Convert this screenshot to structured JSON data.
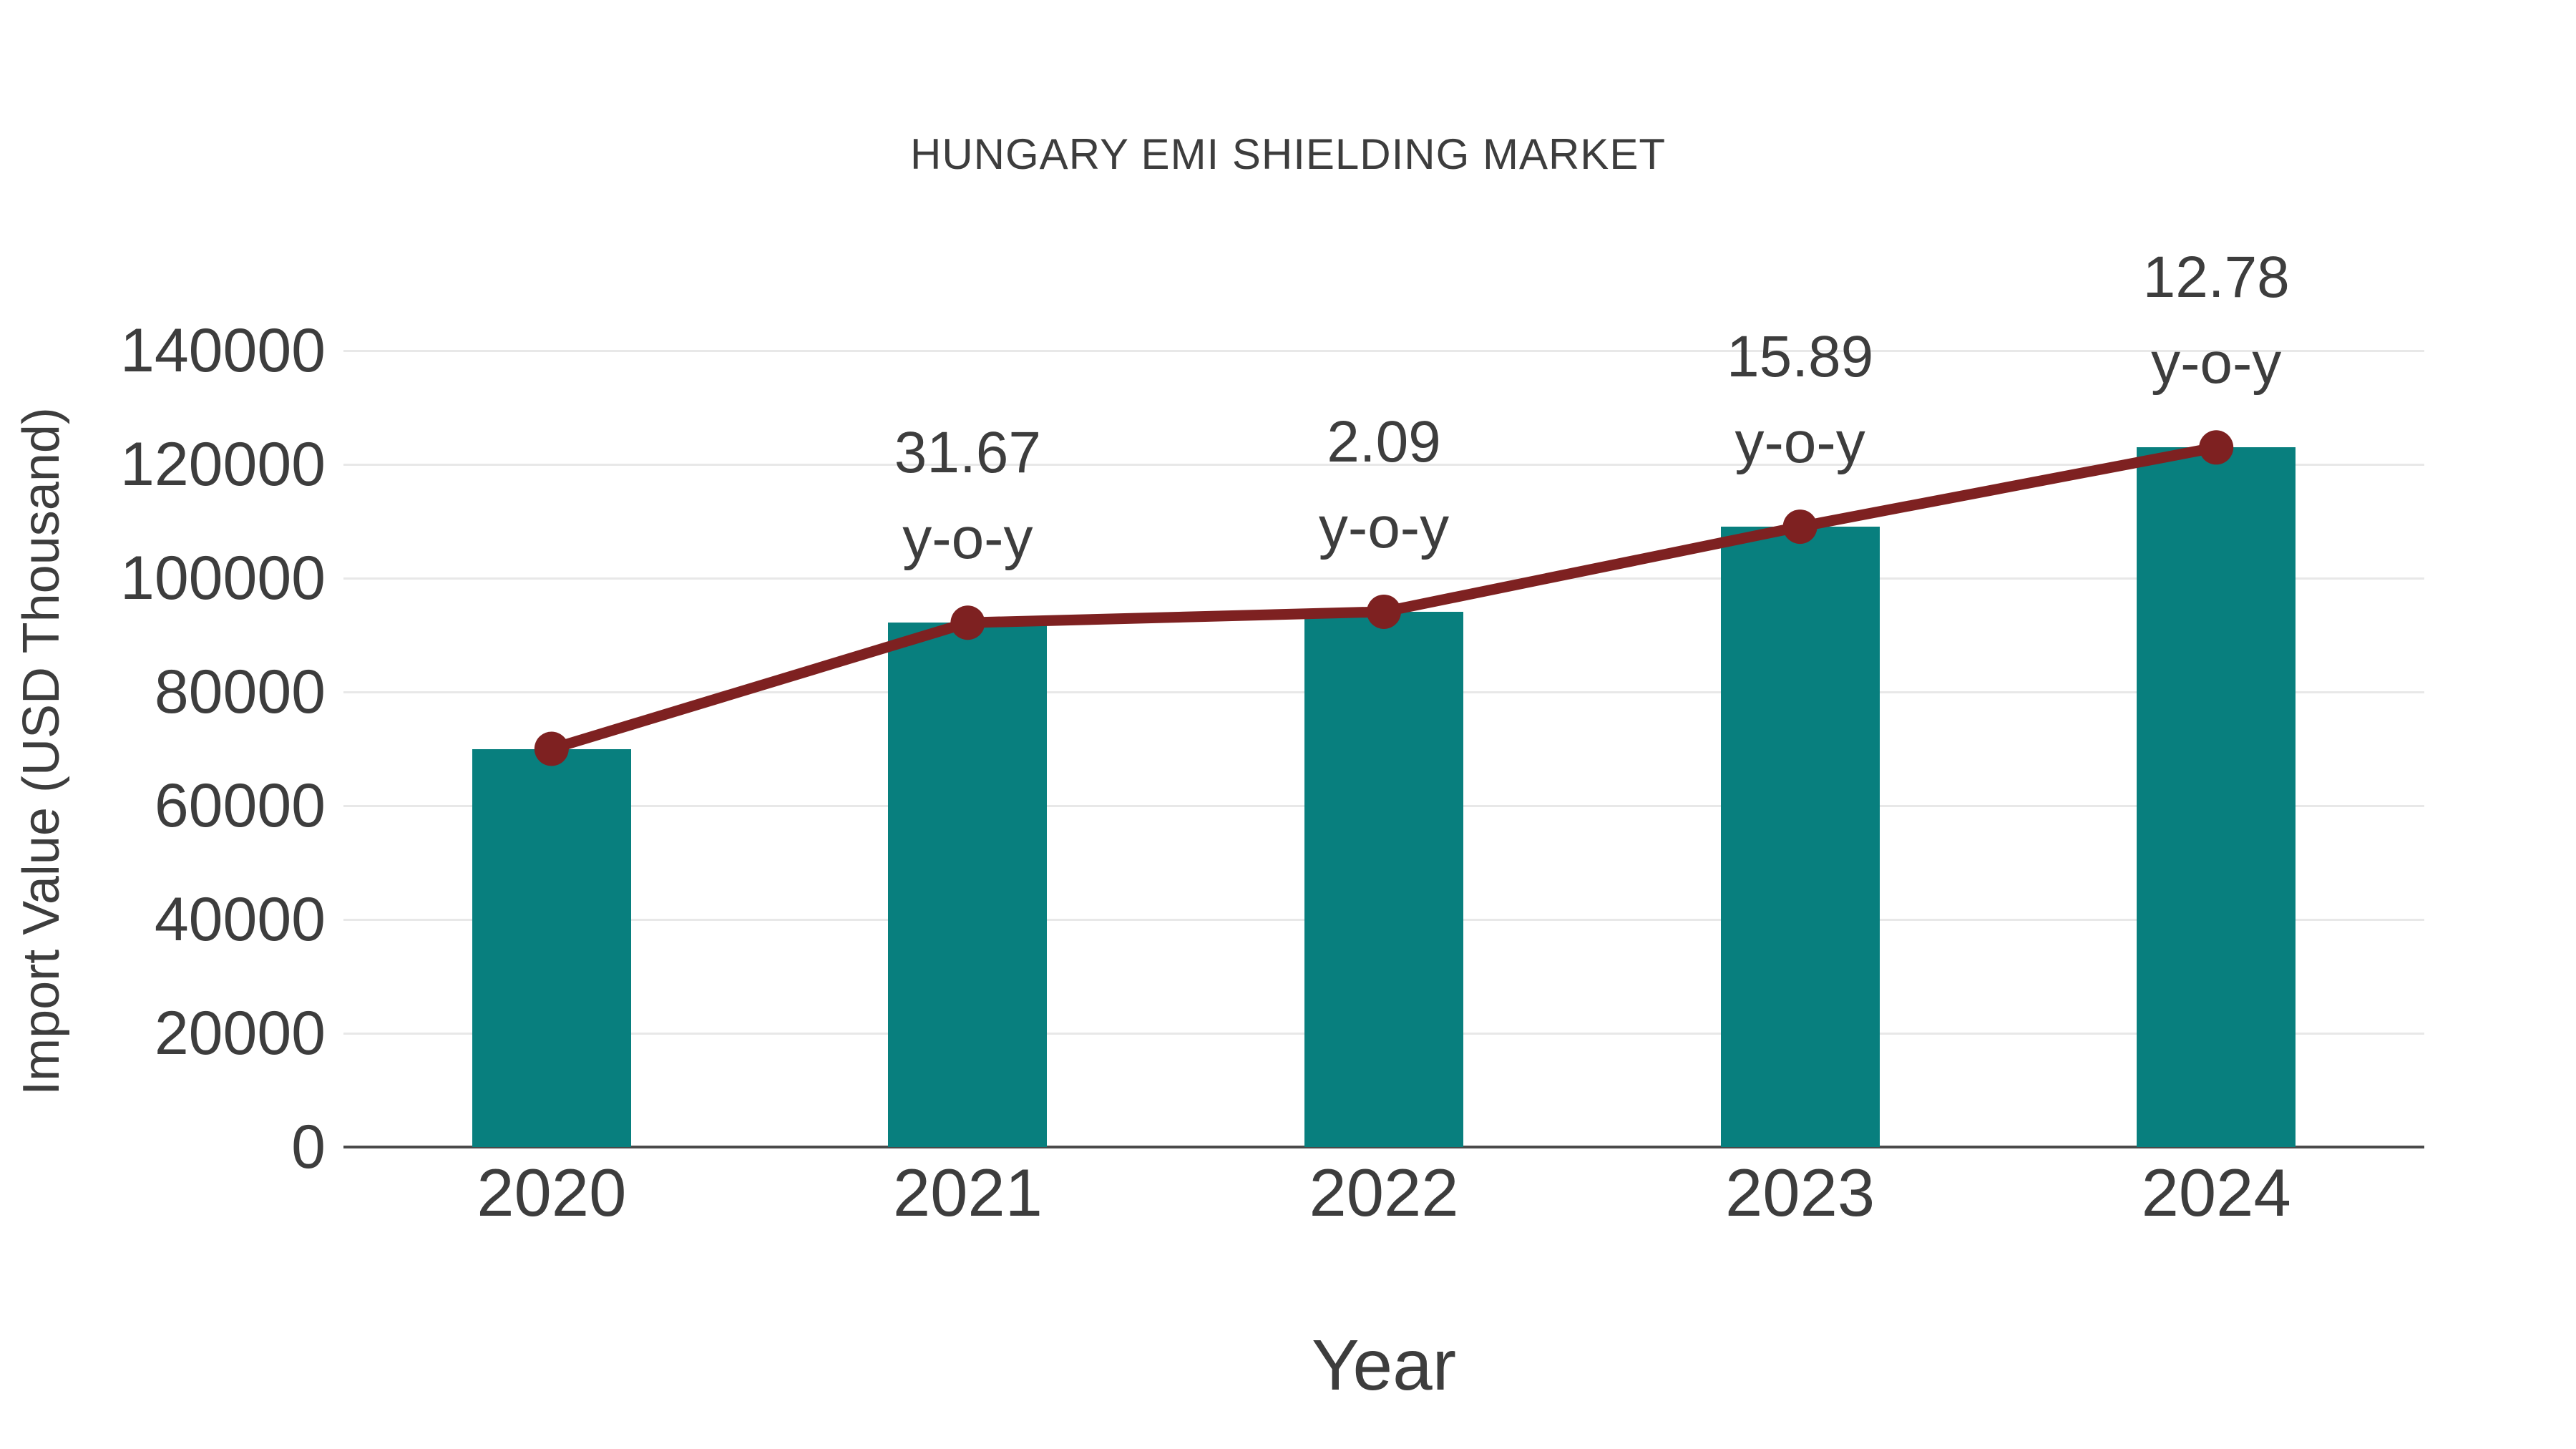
{
  "chart_data": {
    "type": "bar",
    "combo": "bar with line-and-marker overlay at bar tops",
    "title": "HUNGARY EMI SHIELDING MARKET",
    "xlabel": "Year",
    "ylabel": "Import Value (USD Thousand)",
    "categories": [
      "2020",
      "2021",
      "2022",
      "2023",
      "2024"
    ],
    "series": [
      {
        "name": "Import Value bars",
        "type": "bar",
        "values": [
          70000,
          92169,
          94095,
          109047,
          122983
        ]
      },
      {
        "name": "Import Value trend line",
        "type": "line",
        "values": [
          70000,
          92169,
          94095,
          109047,
          122983
        ]
      }
    ],
    "annotations": [
      {
        "category": "2021",
        "value_text": "31.67",
        "suffix_text": "y-o-y",
        "yoy_percent": 31.67
      },
      {
        "category": "2022",
        "value_text": "2.09",
        "suffix_text": "y-o-y",
        "yoy_percent": 2.09
      },
      {
        "category": "2023",
        "value_text": "15.89",
        "suffix_text": "y-o-y",
        "yoy_percent": 15.89
      },
      {
        "category": "2024",
        "value_text": "12.78",
        "suffix_text": "y-o-y",
        "yoy_percent": 12.78
      }
    ],
    "ylim": [
      0,
      140000
    ],
    "yticks": [
      0,
      20000,
      40000,
      60000,
      80000,
      100000,
      120000,
      140000
    ],
    "ytick_labels": [
      "0",
      "20000",
      "40000",
      "60000",
      "80000",
      "100000",
      "120000",
      "140000"
    ],
    "grid": "horizontal gridlines on",
    "legend": "none",
    "colors": {
      "bar": "#087f7e",
      "line": "#7e2121",
      "marker": "#7e2121",
      "text": "#3d3d3d",
      "grid": "#e8e8e8",
      "axis": "#4a4a4a",
      "background": "#ffffff"
    }
  }
}
